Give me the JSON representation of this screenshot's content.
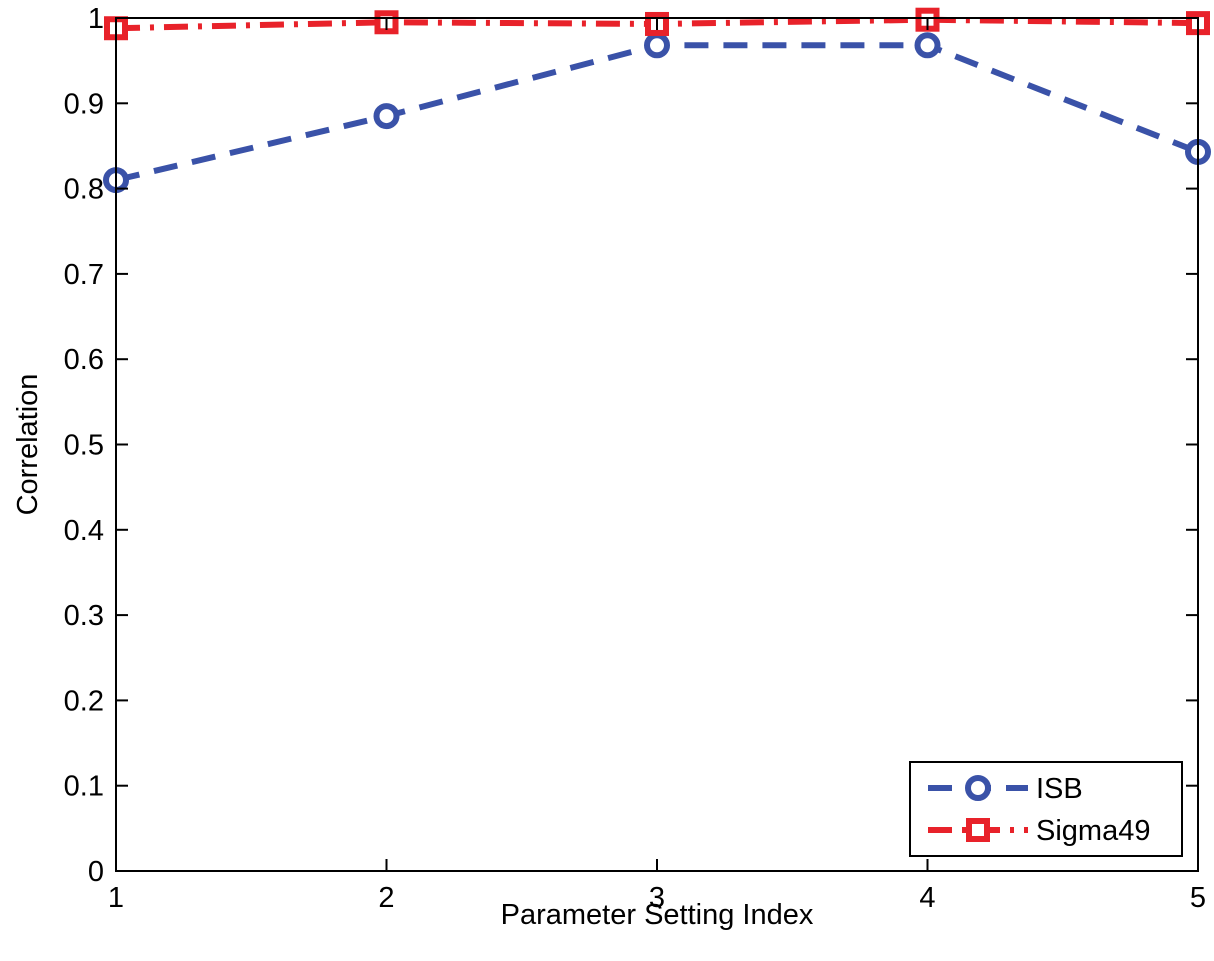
{
  "chart_data": {
    "type": "line",
    "x": [
      1,
      2,
      3,
      4,
      5
    ],
    "series": [
      {
        "name": "ISB",
        "values": [
          0.81,
          0.885,
          0.968,
          0.968,
          0.843
        ],
        "color": "#3a52a8",
        "line_style": "dashed",
        "marker": "circle"
      },
      {
        "name": "Sigma49",
        "values": [
          0.988,
          0.995,
          0.993,
          0.998,
          0.994
        ],
        "color": "#e8222a",
        "line_style": "dash-dot",
        "marker": "square"
      }
    ],
    "xlabel": "Parameter Setting Index",
    "ylabel": "Correlation",
    "xlim": [
      1,
      5
    ],
    "ylim": [
      0,
      1
    ],
    "xticks": [
      "1",
      "2",
      "3",
      "4",
      "5"
    ],
    "yticks": [
      "0",
      "0.1",
      "0.2",
      "0.3",
      "0.4",
      "0.5",
      "0.6",
      "0.7",
      "0.8",
      "0.9",
      "1"
    ],
    "grid": false,
    "legend_position": "bottom-right"
  }
}
